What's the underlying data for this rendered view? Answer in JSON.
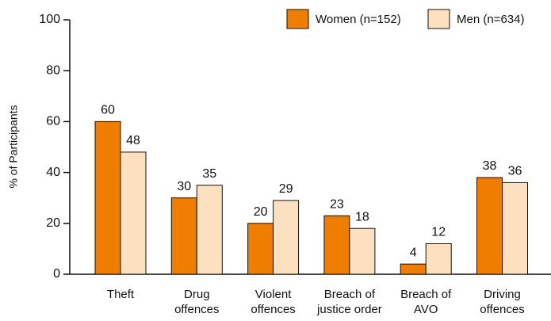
{
  "chart_data": {
    "type": "bar",
    "y_label": "% of Participants",
    "categories": [
      [
        "Theft"
      ],
      [
        "Drug",
        "offences"
      ],
      [
        "Violent",
        "offences"
      ],
      [
        "Breach of",
        "justice order"
      ],
      [
        "Breach of",
        "AVO"
      ],
      [
        "Driving",
        "offences"
      ]
    ],
    "series": [
      {
        "name": "Women (n=152)",
        "color": "#ee7d00",
        "values": [
          60,
          30,
          20,
          23,
          4,
          38
        ]
      },
      {
        "name": "Men (n=634)",
        "color": "#fde0c0",
        "values": [
          48,
          35,
          29,
          18,
          12,
          36
        ]
      }
    ],
    "ylim": [
      0,
      100
    ],
    "yticks": [
      0,
      20,
      40,
      60,
      80,
      100
    ],
    "grid": false,
    "legend": "top-right"
  }
}
